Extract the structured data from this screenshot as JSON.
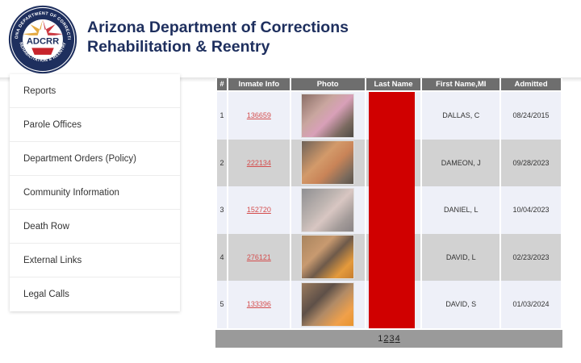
{
  "header": {
    "title_line1": "Arizona Department of Corrections",
    "title_line2": "Rehabilitation & Reentry",
    "seal_text": "ADCRR",
    "seal_ring_top": "ARIZONA DEPARTMENT OF CORRECTIONS",
    "seal_ring_bottom": "REHABILITATION & REENTRY"
  },
  "sidebar": {
    "items": [
      {
        "label": "Reports"
      },
      {
        "label": "Parole Offices"
      },
      {
        "label": "Department Orders (Policy)"
      },
      {
        "label": "Community Information"
      },
      {
        "label": "Death Row"
      },
      {
        "label": "External Links"
      },
      {
        "label": "Legal Calls"
      }
    ]
  },
  "table": {
    "headers": [
      "#",
      "Inmate Info",
      "Photo",
      "Last Name",
      "First Name,MI",
      "Admitted"
    ],
    "rows": [
      {
        "num": "1",
        "inmate": "136659",
        "first": "DALLAS, C",
        "admitted": "08/24/2015"
      },
      {
        "num": "2",
        "inmate": "222134",
        "first": "DAMEON, J",
        "admitted": "09/28/2023"
      },
      {
        "num": "3",
        "inmate": "152720",
        "first": "DANIEL, L",
        "admitted": "10/04/2023"
      },
      {
        "num": "4",
        "inmate": "276121",
        "first": "DAVID, L",
        "admitted": "02/23/2023"
      },
      {
        "num": "5",
        "inmate": "133396",
        "first": "DAVID, S",
        "admitted": "01/03/2024"
      }
    ]
  },
  "pager": {
    "pages": [
      "1",
      "2",
      "3",
      "4"
    ],
    "current": "1"
  },
  "colors": {
    "title": "#1e2f5e",
    "header_row": "#6e6e6e",
    "redaction": "#d00000",
    "link": "#d44d4d"
  }
}
